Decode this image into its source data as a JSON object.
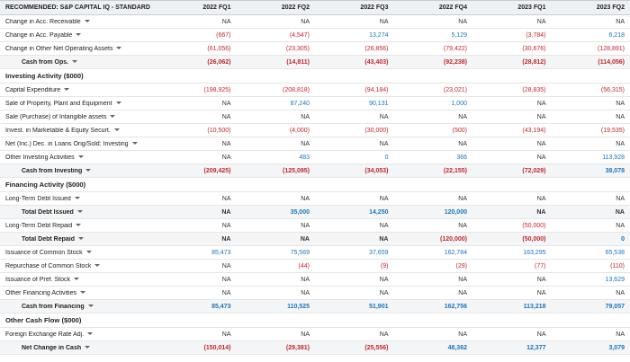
{
  "header": {
    "label": "RECOMMENDED: S&P CAPITAL IQ - STANDARD",
    "periods": [
      "2022 FQ1",
      "2022 FQ2",
      "2022 FQ3",
      "2022 FQ4",
      "2023 FQ1",
      "2023 FQ2"
    ]
  },
  "colors": {
    "negative": "#c2272d",
    "positive": "#1b75bb",
    "neutral": "#333333"
  },
  "rows": [
    {
      "label": "Change in Acc. Receivable",
      "type": "line",
      "dropdown": true,
      "values": [
        "NA",
        "NA",
        "NA",
        "NA",
        "NA",
        "NA"
      ]
    },
    {
      "label": "Change in Acc. Payable",
      "type": "line",
      "dropdown": true,
      "values": [
        "(667)",
        "(4,547)",
        "13,274",
        "5,129",
        "(3,784)",
        "6,218"
      ]
    },
    {
      "label": "Change in Other Net Operating Assets",
      "type": "line",
      "dropdown": true,
      "values": [
        "(61,056)",
        "(23,305)",
        "(26,856)",
        "(79,422)",
        "(30,676)",
        "(128,891)"
      ]
    },
    {
      "label": "Cash from Ops.",
      "type": "total",
      "dropdown": true,
      "values": [
        "(26,062)",
        "(14,811)",
        "(43,403)",
        "(92,238)",
        "(28,812)",
        "(114,056)"
      ]
    },
    {
      "label": "Investing Activity ($000)",
      "type": "section",
      "dropdown": false,
      "values": [
        "",
        "",
        "",
        "",
        "",
        ""
      ]
    },
    {
      "label": "Capital Expenditure",
      "type": "line",
      "dropdown": true,
      "values": [
        "(198,925)",
        "(208,818)",
        "(94,184)",
        "(23,021)",
        "(28,835)",
        "(56,315)"
      ]
    },
    {
      "label": "Sale of Property, Plant and Equipment",
      "type": "line",
      "dropdown": true,
      "values": [
        "NA",
        "87,240",
        "90,131",
        "1,000",
        "NA",
        "NA"
      ]
    },
    {
      "label": "Sale (Purchase) of Intangible assets",
      "type": "line",
      "dropdown": true,
      "values": [
        "NA",
        "NA",
        "NA",
        "NA",
        "NA",
        "NA"
      ]
    },
    {
      "label": "Invest. in Marketable & Equity Securt.",
      "type": "line",
      "dropdown": true,
      "values": [
        "(10,500)",
        "(4,000)",
        "(30,000)",
        "(500)",
        "(43,194)",
        "(19,535)"
      ]
    },
    {
      "label": "Net (Inc.) Dec. in Loans Orig/Sold: Investing",
      "type": "line",
      "dropdown": true,
      "values": [
        "NA",
        "NA",
        "NA",
        "NA",
        "NA",
        "NA"
      ]
    },
    {
      "label": "Other Investing Activities",
      "type": "line",
      "dropdown": true,
      "values": [
        "NA",
        "483",
        "0",
        "366",
        "NA",
        "113,928"
      ]
    },
    {
      "label": "Cash from Investing",
      "type": "total",
      "dropdown": true,
      "values": [
        "(209,425)",
        "(125,095)",
        "(34,053)",
        "(22,155)",
        "(72,029)",
        "38,078"
      ]
    },
    {
      "label": "Financing Activity ($000)",
      "type": "section",
      "dropdown": false,
      "values": [
        "",
        "",
        "",
        "",
        "",
        ""
      ]
    },
    {
      "label": "Long-Term Debt Issued",
      "type": "line",
      "dropdown": true,
      "values": [
        "NA",
        "NA",
        "NA",
        "NA",
        "NA",
        "NA"
      ]
    },
    {
      "label": "Total Debt Issued",
      "type": "total",
      "dropdown": true,
      "values": [
        "NA",
        "35,000",
        "14,250",
        "120,000",
        "NA",
        "NA"
      ]
    },
    {
      "label": "Long-Term Debt Repaid",
      "type": "line",
      "dropdown": true,
      "values": [
        "NA",
        "NA",
        "NA",
        "NA",
        "(50,000)",
        "NA"
      ]
    },
    {
      "label": "Total Debt Repaid",
      "type": "total",
      "dropdown": true,
      "values": [
        "NA",
        "NA",
        "NA",
        "(120,000)",
        "(50,000)",
        "0"
      ]
    },
    {
      "label": "Issuance of Common Stock",
      "type": "line",
      "dropdown": true,
      "values": [
        "85,473",
        "75,569",
        "37,659",
        "162,784",
        "163,295",
        "65,538"
      ]
    },
    {
      "label": "Repurchase of Common Stock",
      "type": "line",
      "dropdown": true,
      "values": [
        "NA",
        "(44)",
        "(9)",
        "(29)",
        "(77)",
        "(110)"
      ]
    },
    {
      "label": "Issuance of Pref. Stock",
      "type": "line",
      "dropdown": true,
      "values": [
        "NA",
        "NA",
        "NA",
        "NA",
        "NA",
        "13,629"
      ]
    },
    {
      "label": "Other Financing Activities",
      "type": "line",
      "dropdown": true,
      "values": [
        "NA",
        "NA",
        "NA",
        "NA",
        "NA",
        "NA"
      ]
    },
    {
      "label": "Cash from Financing",
      "type": "total",
      "dropdown": true,
      "values": [
        "85,473",
        "110,525",
        "51,901",
        "162,756",
        "113,218",
        "79,057"
      ]
    },
    {
      "label": "Other Cash Flow ($000)",
      "type": "section",
      "dropdown": false,
      "values": [
        "",
        "",
        "",
        "",
        "",
        ""
      ]
    },
    {
      "label": "Foreign Exchange Rate Adj.",
      "type": "line",
      "dropdown": true,
      "values": [
        "NA",
        "NA",
        "NA",
        "NA",
        "NA",
        "NA"
      ]
    },
    {
      "label": "Net Change in Cash",
      "type": "total",
      "dropdown": true,
      "values": [
        "(150,014)",
        "(29,381)",
        "(25,556)",
        "48,362",
        "12,377",
        "3,079"
      ]
    }
  ]
}
